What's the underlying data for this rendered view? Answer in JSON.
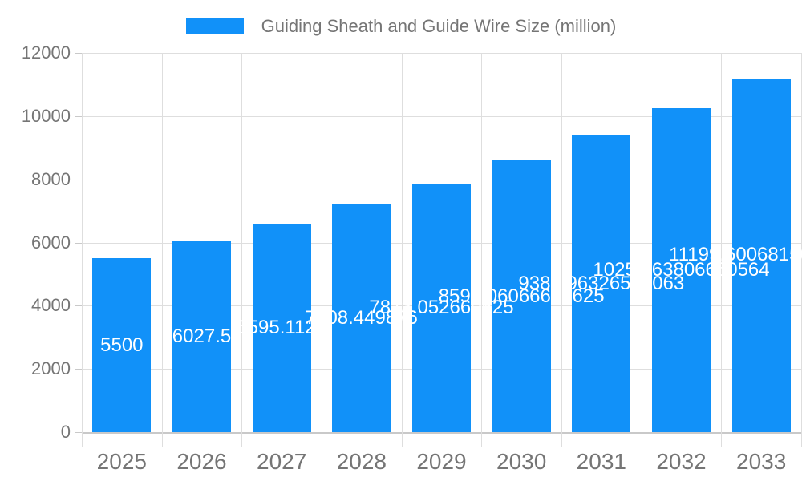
{
  "chart_data": {
    "type": "bar",
    "title": "Guiding Sheath and Guide Wire Size (million)",
    "legend": [
      "Guiding Sheath and Guide Wire Size (million)"
    ],
    "legend_position": "top",
    "categories": [
      "2025",
      "2026",
      "2027",
      "2028",
      "2029",
      "2030",
      "2031",
      "2032",
      "2033"
    ],
    "values": [
      5500,
      6027.5,
      6595.1125,
      7208.449876,
      7873.052660625,
      8597.06066640625,
      9387.96326559063,
      10251.63806660564,
      11199.600681560563
    ],
    "value_labels": [
      "5500",
      "6027.5",
      "6595.1125",
      "7208.449876",
      "7873.052660625",
      "8597.06066640625",
      "9387.96326559063",
      "10251.63806660564",
      "11199.600681560564"
    ],
    "xlabel": "",
    "ylabel": "",
    "ylim": [
      0,
      12000
    ],
    "yticks": [
      "0",
      "2000",
      "4000",
      "6000",
      "8000",
      "10000",
      "12000"
    ],
    "grid": true,
    "colors": {
      "bar": "#1191f9",
      "text": "#757575",
      "grid": "#dedede",
      "value_label_text": "#ffffff",
      "background": "#ffffff"
    }
  }
}
